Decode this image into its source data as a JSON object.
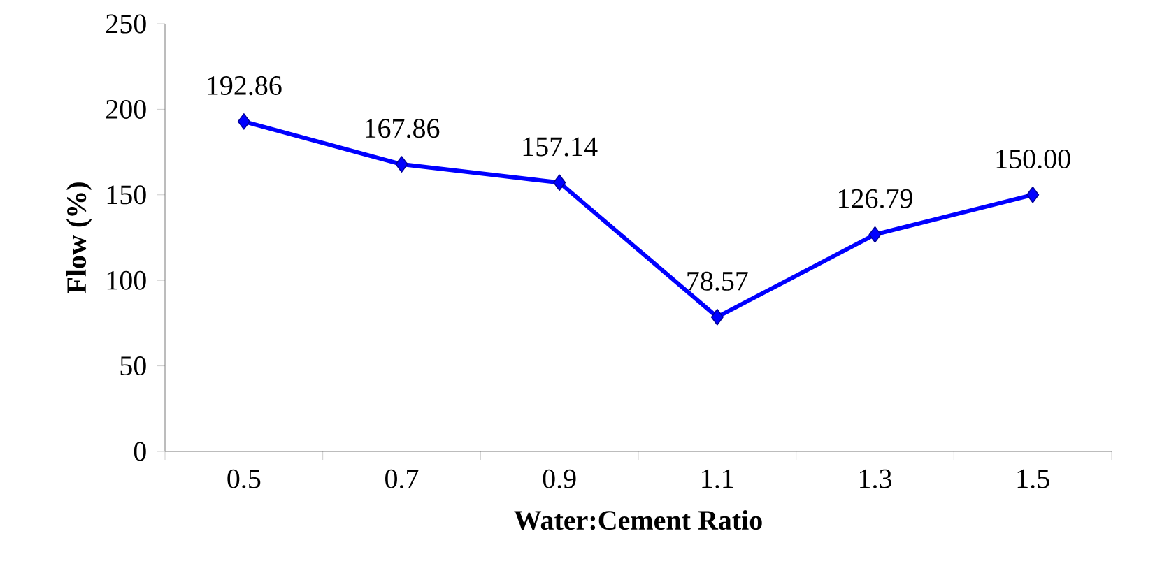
{
  "chart_data": {
    "type": "line",
    "xlabel": "Water:Cement Ratio",
    "ylabel": "Flow (%)",
    "categories": [
      "0.5",
      "0.7",
      "0.9",
      "1.1",
      "1.3",
      "1.5"
    ],
    "series": [
      {
        "color": "#0000ff",
        "values": [
          192.86,
          167.86,
          157.14,
          78.57,
          126.79,
          150.0
        ],
        "value_labels": [
          "192.86",
          "167.86",
          "157.14",
          "78.57",
          "126.79",
          "150.00"
        ]
      }
    ],
    "ylim": [
      0,
      250
    ],
    "yticks": [
      0,
      50,
      100,
      150,
      200,
      250
    ],
    "marker": "diamond",
    "line_style": "solid",
    "grid": false
  }
}
